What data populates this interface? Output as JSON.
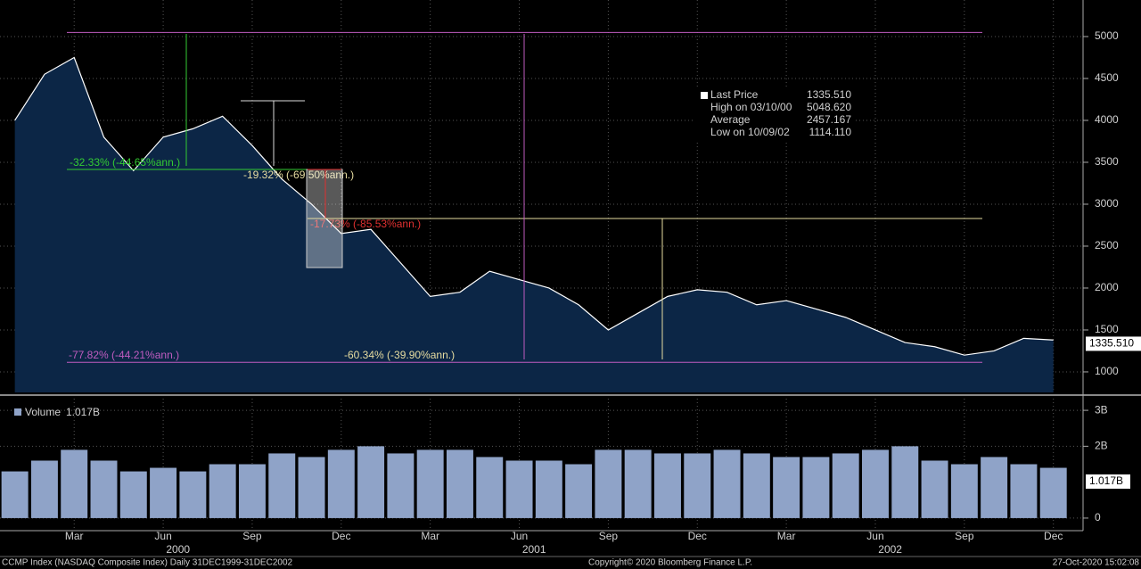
{
  "chart_data": [
    {
      "type": "line",
      "x": [
        "2000-01",
        "2000-02",
        "2000-03",
        "2000-04",
        "2000-05",
        "2000-06",
        "2000-07",
        "2000-08",
        "2000-09",
        "2000-10",
        "2000-11",
        "2000-12",
        "2001-01",
        "2001-02",
        "2001-03",
        "2001-04",
        "2001-05",
        "2001-06",
        "2001-07",
        "2001-08",
        "2001-09",
        "2001-10",
        "2001-11",
        "2001-12",
        "2002-01",
        "2002-02",
        "2002-03",
        "2002-04",
        "2002-05",
        "2002-06",
        "2002-07",
        "2002-08",
        "2002-09",
        "2002-10",
        "2002-11",
        "2002-12"
      ],
      "series": [
        {
          "name": "Last Price",
          "color": "#ffffff",
          "values": [
            4000,
            4550,
            4750,
            3800,
            3400,
            3800,
            3900,
            4050,
            3700,
            3300,
            3000,
            2650,
            2700,
            2300,
            1900,
            1950,
            2200,
            2100,
            2000,
            1800,
            1500,
            1700,
            1900,
            1980,
            1950,
            1800,
            1850,
            1750,
            1650,
            1500,
            1350,
            1300,
            1200,
            1250,
            1400,
            1380
          ]
        }
      ],
      "ylim": [
        755,
        5436
      ],
      "yticks": [
        1000,
        1500,
        2000,
        2500,
        3000,
        3500,
        4000,
        4500,
        5000
      ],
      "xticks": [
        {
          "value": "2000-03",
          "label": "Mar"
        },
        {
          "value": "2000-06",
          "label": "Jun"
        },
        {
          "value": "2000-09",
          "label": "Sep"
        },
        {
          "value": "2000-12",
          "label": "Dec"
        },
        {
          "value": "2001-03",
          "label": "Mar"
        },
        {
          "value": "2001-06",
          "label": "Jun"
        },
        {
          "value": "2001-09",
          "label": "Sep"
        },
        {
          "value": "2001-12",
          "label": "Dec"
        },
        {
          "value": "2002-03",
          "label": "Mar"
        },
        {
          "value": "2002-06",
          "label": "Jun"
        },
        {
          "value": "2002-09",
          "label": "Sep"
        },
        {
          "value": "2002-12",
          "label": "Dec"
        }
      ],
      "year_ticks": [
        {
          "value": "2000-07",
          "label": "2000"
        },
        {
          "value": "2001-07",
          "label": "2001"
        },
        {
          "value": "2002-07",
          "label": "2002"
        }
      ],
      "grid": true,
      "stats": {
        "names": [
          "Last Price",
          "High on 03/10/00",
          "Average",
          "Low on 10/09/02"
        ],
        "values": [
          1335.51,
          5048.62,
          2457.167,
          1114.11
        ],
        "value_labels": [
          "1335.510",
          "5048.620",
          "2457.167",
          "1114.110"
        ]
      },
      "annotations": [
        {
          "text": "-32.33% (-44.65%ann.)",
          "color": "#33cc33"
        },
        {
          "text": "-19.32% (-69.50%ann.)",
          "color": "#e6dca0"
        },
        {
          "text": "-17.73% (-85.53%ann.)",
          "color": "#e03030"
        },
        {
          "text": "-77.82% (-44.21%ann.)",
          "color": "#c05cc0"
        },
        {
          "text": "-60.34% (-39.90%ann.)",
          "color": "#e6dca0"
        }
      ]
    },
    {
      "type": "bar",
      "x": [
        "2000-01",
        "2000-02",
        "2000-03",
        "2000-04",
        "2000-05",
        "2000-06",
        "2000-07",
        "2000-08",
        "2000-09",
        "2000-10",
        "2000-11",
        "2000-12",
        "2001-01",
        "2001-02",
        "2001-03",
        "2001-04",
        "2001-05",
        "2001-06",
        "2001-07",
        "2001-08",
        "2001-09",
        "2001-10",
        "2001-11",
        "2001-12",
        "2002-01",
        "2002-02",
        "2002-03",
        "2002-04",
        "2002-05",
        "2002-06",
        "2002-07",
        "2002-08",
        "2002-09",
        "2002-10",
        "2002-11",
        "2002-12"
      ],
      "series": [
        {
          "name": "Volume",
          "color": "#8fa3c8",
          "values": [
            1.3,
            1.6,
            1.9,
            1.6,
            1.3,
            1.4,
            1.3,
            1.5,
            1.5,
            1.8,
            1.7,
            1.9,
            2.0,
            1.8,
            1.9,
            1.9,
            1.7,
            1.6,
            1.6,
            1.5,
            1.9,
            1.9,
            1.8,
            1.8,
            1.9,
            1.8,
            1.7,
            1.7,
            1.8,
            1.9,
            2.0,
            1.6,
            1.5,
            1.7,
            1.5,
            1.4
          ]
        }
      ],
      "last_value": 1.017,
      "last_value_label": "1.017B",
      "ylim": [
        -0.275,
        3.325
      ],
      "yticks": [
        0,
        {
          "value": 2,
          "label": "2B"
        },
        {
          "value": 3,
          "label": "3B"
        }
      ]
    }
  ],
  "footer": {
    "left": "CCMP Index (NASDAQ Composite Index)  Daily 31DEC1999-31DEC2002",
    "center": "Copyright© 2020 Bloomberg Finance L.P.",
    "right": "27-Oct-2020 15:02:08"
  }
}
